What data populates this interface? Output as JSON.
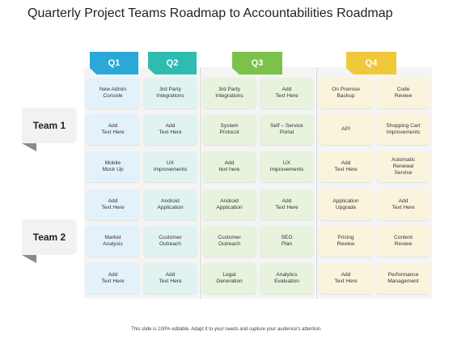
{
  "title": "Quarterly Project Teams Roadmap to Accountabilities Roadmap",
  "quarters": [
    {
      "label": "Q1",
      "color": "#2aa8d8"
    },
    {
      "label": "Q2",
      "color": "#2fbcb0"
    },
    {
      "label": "Q3",
      "color": "#7cc14a"
    },
    {
      "label": "Q4",
      "color": "#f0c93a"
    }
  ],
  "teams": [
    "Team 1",
    "Team 2"
  ],
  "rows": [
    [
      "New Admin\nConsole",
      "3rd Party\nIntegrations",
      "3rd Party\nIntegrations",
      "Add\nText Here",
      "On Premise\nBackup",
      "Code\nReview"
    ],
    [
      "Add\nText Here",
      "Add\nText Here",
      "System\nProtocol",
      "Self – Service\nPortal",
      "API",
      "Shopping Cart\nImprovements"
    ],
    [
      "Mobile\nMock Up",
      "UX\nImprovements",
      "Add\ntext here",
      "UX\nImprovements",
      "Add\nText Here",
      "Automatic\nRenewal\nService"
    ],
    [
      "Add\nText Here",
      "Android\nApplication",
      "Android\nApplication",
      "Add\nText Here",
      "Application\nUpgrade",
      "Add\nText Here"
    ],
    [
      "Market\nAnalysis",
      "Customer\nOutreach",
      "Customer\nOutreach",
      "SEO\nPlan",
      "Pricing\nReview",
      "Content\nReview"
    ],
    [
      "Add\nText Here",
      "Add\nText Here",
      "Legal\nGeneration",
      "Analytics\nEvaluation",
      "Add\nText Here",
      "Performance\nManagement"
    ]
  ],
  "footer": "This slide is 100% editable. Adapt it to your needs and capture your audience's attention."
}
